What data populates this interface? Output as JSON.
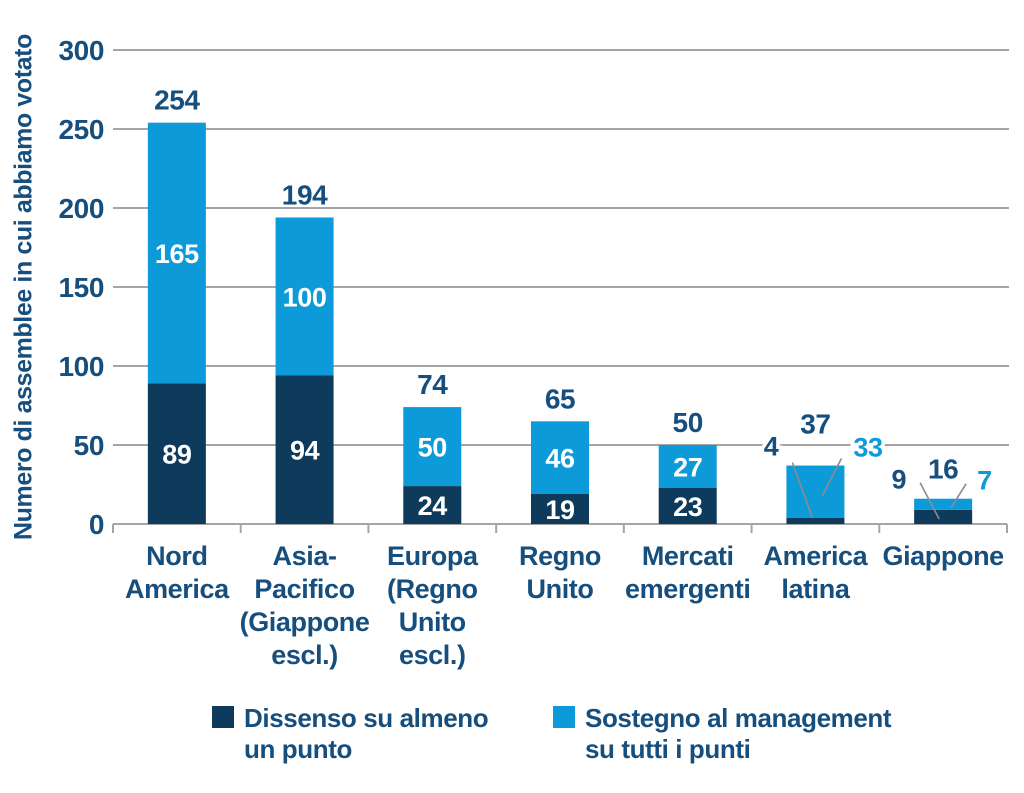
{
  "chart_data": {
    "type": "bar",
    "stacked": true,
    "title": "",
    "xlabel": "",
    "ylabel": "Numero di assemblee in cui abbiamo votato",
    "ylim": [
      0,
      300
    ],
    "yticks": [
      0,
      50,
      100,
      150,
      200,
      250,
      300
    ],
    "grid": true,
    "legend_position": "bottom",
    "categories": [
      "Nord America",
      "Asia-Pacifico (Giappone escl.)",
      "Europa (Regno Unito escl.)",
      "Regno Unito",
      "Mercati emergenti",
      "America latina",
      "Giappone"
    ],
    "category_lines": [
      [
        "Nord",
        "America"
      ],
      [
        "Asia-",
        "Pacifico",
        "(Giappone",
        "escl.)"
      ],
      [
        "Europa",
        "(Regno",
        "Unito",
        "escl.)"
      ],
      [
        "Regno",
        "Unito"
      ],
      [
        "Mercati",
        "emergenti"
      ],
      [
        "America",
        "latina"
      ],
      [
        "Giappone"
      ]
    ],
    "series": [
      {
        "name": "Dissenso su almeno un punto",
        "color": "#0e3b5c",
        "values": [
          89,
          94,
          24,
          19,
          23,
          4,
          9
        ]
      },
      {
        "name": "Sostegno al management su tutti i punti",
        "color": "#0d9ad8",
        "values": [
          165,
          100,
          50,
          46,
          27,
          33,
          7
        ]
      }
    ],
    "totals": [
      254,
      194,
      74,
      65,
      50,
      37,
      16
    ],
    "value_label_mode": [
      "inside",
      "inside",
      "inside",
      "inside",
      "inside",
      "callout",
      "callout"
    ]
  },
  "legend": {
    "items": [
      {
        "swatch_color": "#0e3b5c",
        "line1": "Dissenso su almeno",
        "line2": "un punto"
      },
      {
        "swatch_color": "#0d9ad8",
        "line1": "Sostegno al management",
        "line2": "su tutti i punti"
      }
    ]
  },
  "colors": {
    "background": "#ffffff",
    "text_navy": "#164e7e",
    "bar_dark": "#0e3b5c",
    "bar_light": "#0d9ad8",
    "inside_label": "#ffffff",
    "gridline": "#a5a5a5",
    "leader_line": "#8c8c8c"
  }
}
